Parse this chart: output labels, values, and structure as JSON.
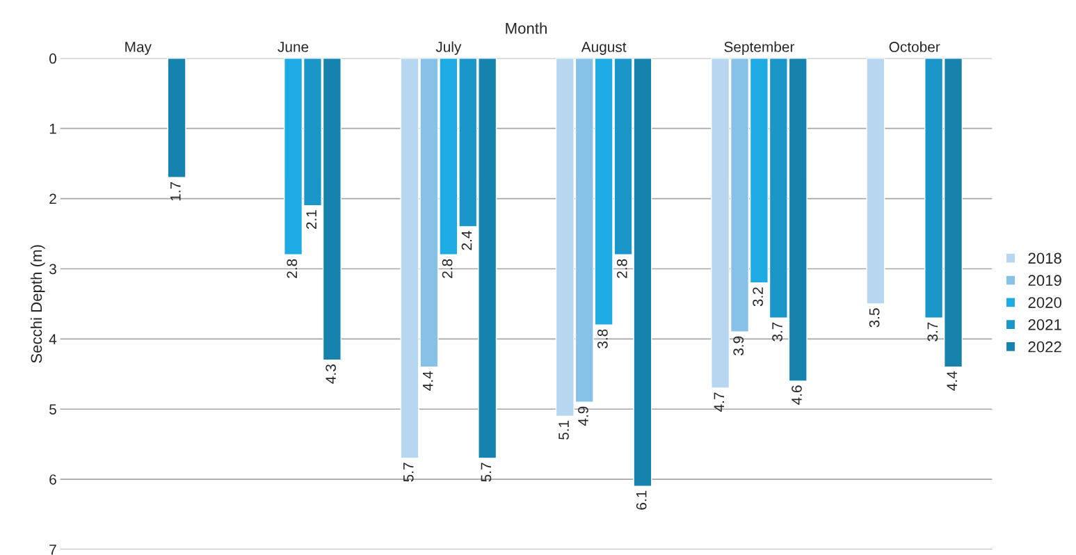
{
  "chart_data": {
    "type": "bar",
    "xlabel": "Month",
    "ylabel": "Secchi Depth (m)",
    "categories": [
      "May",
      "June",
      "July",
      "August",
      "September",
      "October"
    ],
    "series": [
      {
        "name": "2018",
        "color": "#b7d7f0",
        "values": [
          null,
          null,
          5.7,
          5.1,
          4.7,
          3.5
        ]
      },
      {
        "name": "2019",
        "color": "#86c1e8",
        "values": [
          null,
          null,
          4.4,
          4.9,
          3.9,
          null
        ]
      },
      {
        "name": "2020",
        "color": "#1eaae2",
        "values": [
          null,
          2.8,
          2.8,
          3.8,
          3.2,
          null
        ]
      },
      {
        "name": "2021",
        "color": "#1a96c9",
        "values": [
          null,
          2.1,
          2.4,
          2.8,
          3.7,
          3.7
        ]
      },
      {
        "name": "2022",
        "color": "#1583ae",
        "values": [
          1.7,
          4.3,
          5.7,
          6.1,
          4.6,
          4.4
        ]
      }
    ],
    "ylim": [
      7,
      0
    ],
    "yticks": [
      0,
      1,
      2,
      3,
      4,
      5,
      6,
      7
    ],
    "grid": "y",
    "legend": "right",
    "data_labels": true
  }
}
